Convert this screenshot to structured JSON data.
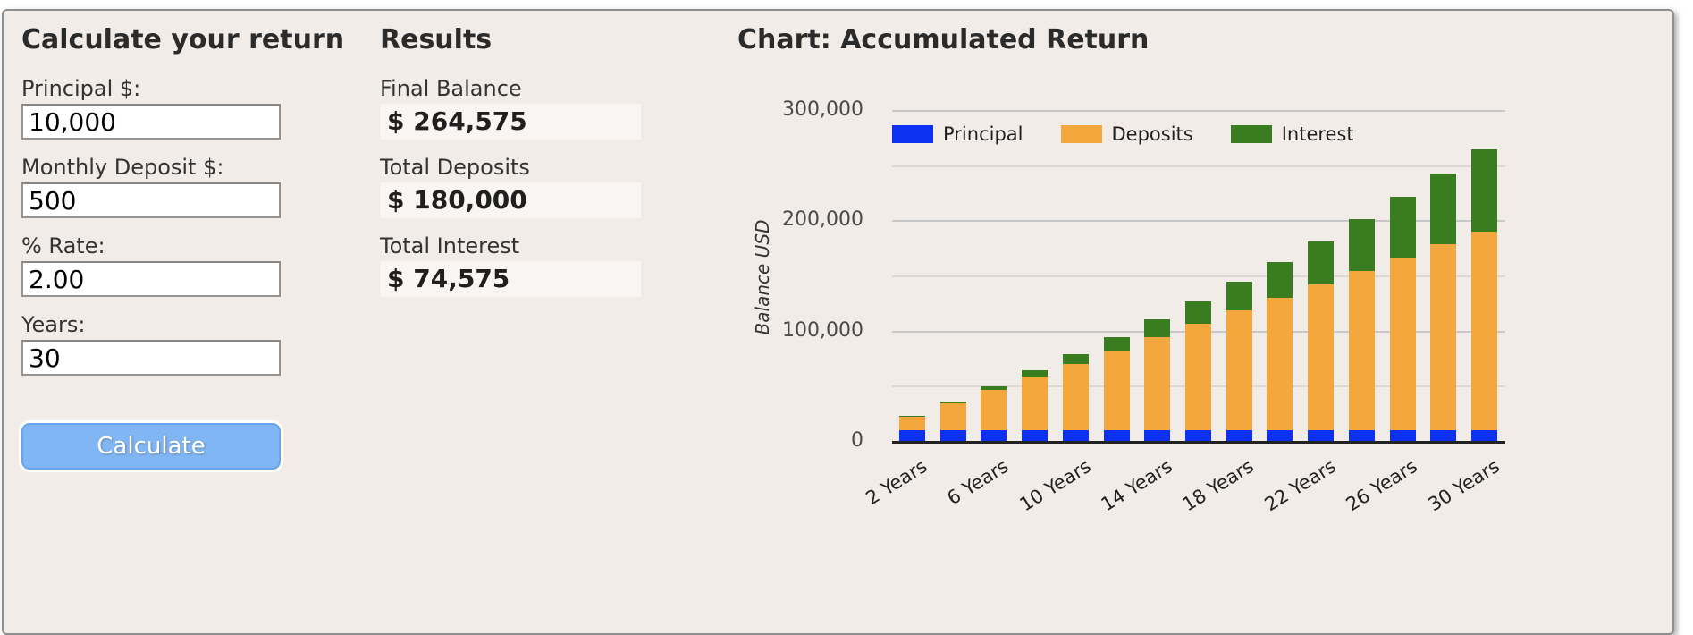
{
  "panel": {
    "background": "#f1ece8",
    "border_color": "#8f8f8f"
  },
  "calculator": {
    "title": "Calculate your return",
    "fields": [
      {
        "label": "Principal $:",
        "value": "10,000"
      },
      {
        "label": "Monthly Deposit $:",
        "value": "500"
      },
      {
        "label": "% Rate:",
        "value": "2.00"
      },
      {
        "label": "Years:",
        "value": "30"
      }
    ],
    "button": {
      "label": "Calculate",
      "color": "#80b6f3"
    }
  },
  "results": {
    "title": "Results",
    "items": [
      {
        "label": "Final Balance",
        "value": "$ 264,575"
      },
      {
        "label": "Total Deposits",
        "value": "$ 180,000"
      },
      {
        "label": "Total Interest",
        "value": "$ 74,575"
      }
    ]
  },
  "chart": {
    "title": "Chart: Accumulated Return"
  },
  "chart_data": {
    "type": "bar",
    "stacked": true,
    "title": "Chart: Accumulated Return",
    "ylabel": "Balance USD",
    "ylim": [
      0,
      300000
    ],
    "grid": true,
    "legend_position": "top-inside",
    "categories": [
      "2 Years",
      "4 Years",
      "6 Years",
      "8 Years",
      "10 Years",
      "12 Years",
      "14 Years",
      "16 Years",
      "18 Years",
      "20 Years",
      "22 Years",
      "24 Years",
      "26 Years",
      "28 Years",
      "30 Years"
    ],
    "x_label_every": 2,
    "y_ticks": [
      {
        "value": 0,
        "label": "0"
      },
      {
        "value": 100000,
        "label": "100,000"
      },
      {
        "value": 200000,
        "label": "200,000"
      },
      {
        "value": 300000,
        "label": "300,000"
      }
    ],
    "y_minor_tick_step": 50000,
    "series": [
      {
        "name": "Principal",
        "color": "#0c31f3",
        "values": [
          10000,
          10000,
          10000,
          10000,
          10000,
          10000,
          10000,
          10000,
          10000,
          10000,
          10000,
          10000,
          10000,
          10000,
          10000
        ]
      },
      {
        "name": "Deposits",
        "color": "#f3a73d",
        "values": [
          12000,
          24000,
          36000,
          48000,
          60000,
          72000,
          84000,
          96000,
          108000,
          120000,
          132000,
          144000,
          156000,
          168000,
          180000
        ]
      },
      {
        "name": "Interest",
        "color": "#3a7d20",
        "values": [
          642,
          1798,
          3488,
          5739,
          8572,
          12010,
          16078,
          20803,
          26199,
          32313,
          39167,
          46784,
          55203,
          64454,
          74575
        ]
      }
    ]
  }
}
